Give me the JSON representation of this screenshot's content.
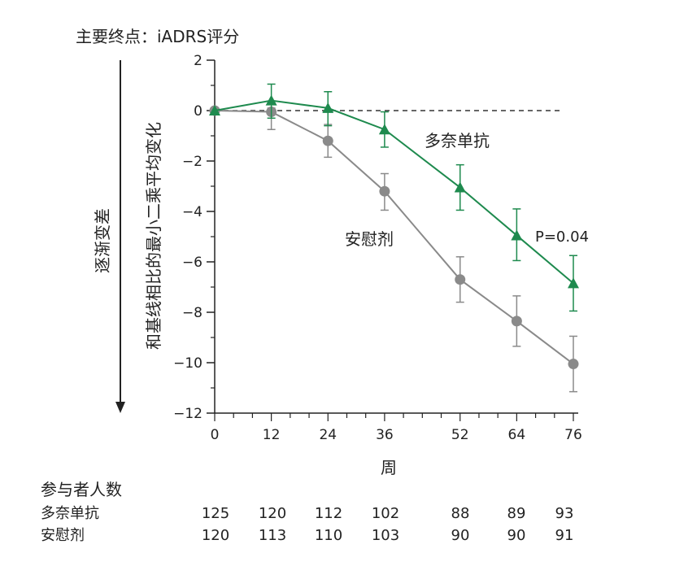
{
  "header": {
    "title": "主要终点：iADRS评分"
  },
  "side_label": "逐渐变差",
  "colors": {
    "treatment": "#1e8a4e",
    "placebo": "#8a8a8a",
    "axis": "#222222"
  },
  "chart_data": {
    "type": "line",
    "ylabel": "和基线相比的最小二乘平均变化",
    "xlabel": "周",
    "x": [
      0,
      12,
      24,
      36,
      52,
      64,
      76
    ],
    "x_ticks": [
      "0",
      "12",
      "24",
      "36",
      "52",
      "64",
      "76"
    ],
    "ylim": [
      -12,
      2
    ],
    "y_ticks": [
      "2",
      "0",
      "−2",
      "−4",
      "−6",
      "−8",
      "−10",
      "−12"
    ],
    "reference_line": 0,
    "series": [
      {
        "name": "多奈单抗",
        "marker": "triangle",
        "color": "#1e8a4e",
        "values": [
          0,
          0.4,
          0.1,
          -0.75,
          -3.05,
          -4.95,
          -6.85
        ],
        "err_low": [
          0,
          -0.3,
          -0.6,
          -1.45,
          -3.95,
          -5.95,
          -7.95
        ],
        "err_high": [
          0,
          1.05,
          0.75,
          -0.05,
          -2.15,
          -3.9,
          -5.75
        ]
      },
      {
        "name": "安慰剂",
        "marker": "circle",
        "color": "#8a8a8a",
        "values": [
          0,
          -0.05,
          -1.2,
          -3.2,
          -6.7,
          -8.35,
          -10.05
        ],
        "err_low": [
          0,
          -0.75,
          -1.85,
          -3.95,
          -7.6,
          -9.35,
          -11.15
        ],
        "err_high": [
          0,
          0.1,
          -0.55,
          -2.5,
          -5.8,
          -7.35,
          -8.95
        ]
      }
    ],
    "annotations": [
      {
        "text": "P=0.04"
      }
    ],
    "participants": {
      "title": "参与者人数",
      "rows": [
        {
          "label": "多奈单抗",
          "values": [
            "125",
            "120",
            "112",
            "102",
            "88",
            "89",
            "93"
          ]
        },
        {
          "label": "安慰剂",
          "values": [
            "120",
            "113",
            "110",
            "103",
            "90",
            "90",
            "91"
          ]
        }
      ]
    }
  }
}
